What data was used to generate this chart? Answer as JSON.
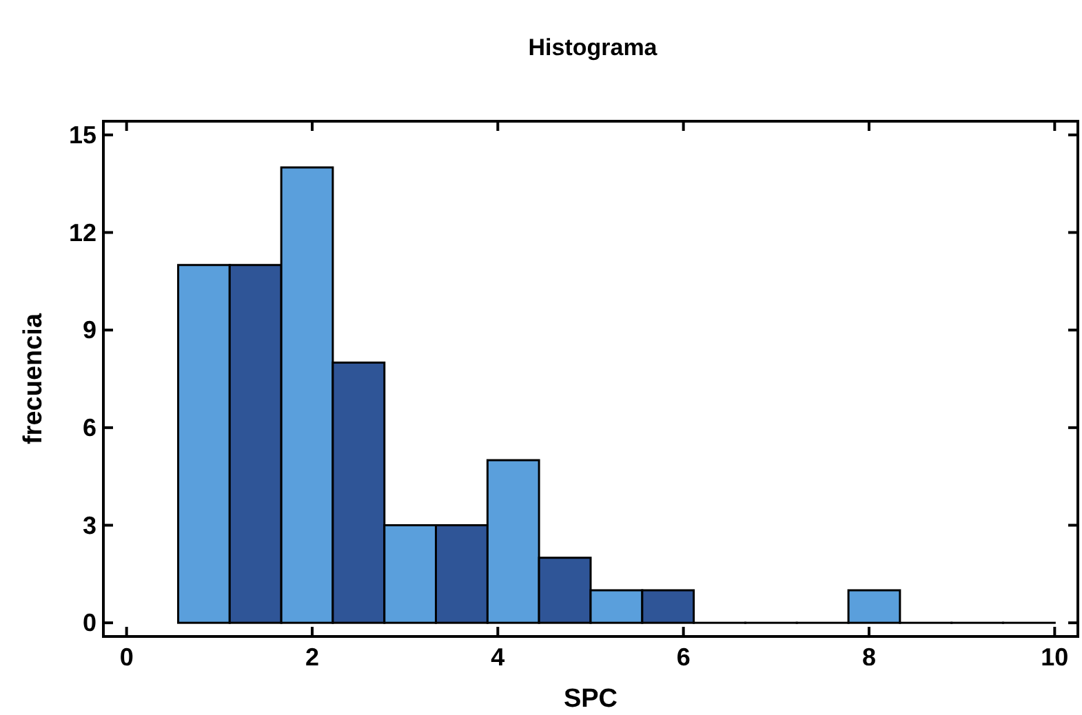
{
  "chart_data": {
    "type": "histogram",
    "title": "Histograma",
    "xlabel": "SPC",
    "ylabel": "frecuencia",
    "bins": [
      0.556,
      1.111,
      1.667,
      2.222,
      2.778,
      3.333,
      3.889,
      4.444,
      5,
      5.556,
      6.111,
      6.667,
      7.222,
      7.778,
      8.333,
      8.889,
      9.444,
      10
    ],
    "values": [
      11,
      11,
      14,
      8,
      3,
      3,
      5,
      2,
      1,
      1,
      0,
      0,
      0,
      1,
      0,
      0,
      0
    ],
    "colors": [
      "#5a9fdc",
      "#2f5597",
      "#5a9fdc",
      "#2f5597",
      "#5a9fdc",
      "#2f5597",
      "#5a9fdc",
      "#2f5597",
      "#5a9fdc",
      "#2f5597",
      "#000000",
      "#000000",
      "#000000",
      "#5a9fdc",
      "#000000",
      "#000000",
      "#000000"
    ],
    "xlim": [
      -0.25,
      10.25
    ],
    "xticks": [
      0,
      2,
      4,
      6,
      8,
      10
    ],
    "ylim": [
      -0.42,
      15.42
    ],
    "yticks": [
      0,
      3,
      6,
      9,
      12,
      15
    ],
    "grid": false
  }
}
